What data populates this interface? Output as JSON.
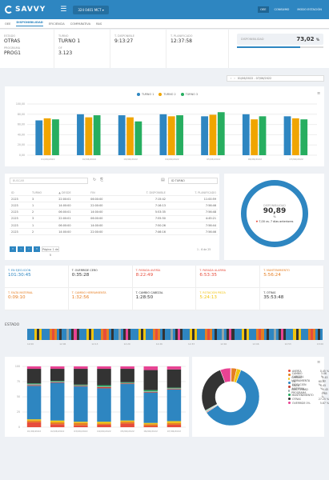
{
  "header": {
    "brand": "SAVVY",
    "machine": "324 0401 MCT ▾",
    "menu": [
      "OEE",
      "CONSUMO",
      "MODO ESTACIÓN"
    ]
  },
  "tabs": [
    "OEE",
    "DISPONIBILIDAD",
    "EFICIENCIA",
    "COMPARATIVA",
    "RAS"
  ],
  "kpis": [
    {
      "l1": "ESTADO",
      "v1": "OTRAS",
      "l2": "PROGRAMA",
      "v2": "PROG1"
    },
    {
      "l1": "TURNO",
      "v1": "TURNO 1",
      "l2": "OF",
      "v2": "3.123"
    },
    {
      "l1": "T. DISPONIBLE",
      "v1": "9:13:27",
      "l2": "",
      "v2": ""
    },
    {
      "l1": "T. PLANIFICADO",
      "v1": "12:37:58",
      "l2": "",
      "v2": ""
    }
  ],
  "disponibilidad": {
    "label": "DISPONIBILIDAD",
    "value": "73,02",
    "unit": "%",
    "fraction": 0.73
  },
  "date_range": "01/06/2022 - 07/06/2022",
  "chart_data": [
    {
      "type": "bar",
      "categories": [
        "01/06/2022",
        "02/06/2022",
        "03/06/2022",
        "04/06/2022",
        "05/06/2022",
        "06/06/2022",
        "07/06/2022"
      ],
      "series": [
        {
          "name": "TURNO 1",
          "color": "#2e86c1",
          "values": [
            68,
            80,
            78,
            80,
            76,
            80,
            76
          ]
        },
        {
          "name": "TURNO 2",
          "color": "#f0a500",
          "values": [
            72,
            74,
            74,
            76,
            79,
            70,
            72
          ]
        },
        {
          "name": "TURNO 3",
          "color": "#27ae60",
          "values": [
            70,
            78,
            66,
            78,
            84,
            76,
            70
          ]
        }
      ],
      "yticks": [
        "100,00",
        "80,00",
        "60,00",
        "40,00",
        "20,00",
        "0,00"
      ],
      "ylim": [
        0,
        100
      ]
    },
    {
      "type": "bar",
      "stacked": true,
      "categories": [
        "01/06/2022",
        "02/06/2022",
        "03/06/2022",
        "04/06/2022",
        "05/06/2022",
        "06/06/2022",
        "07/06/2022"
      ],
      "yticks": [
        "100",
        "75",
        "50",
        "25",
        "0"
      ],
      "ylim": [
        0,
        100
      ]
    },
    {
      "type": "pie",
      "labels": [
        "AVERÍA",
        "CAMBIO CABEZAL",
        "CAMBIO HERRAMIENTA",
        "EN EJECUCIÓN",
        "FALTA MATERIAL",
        "INACTIVIDAD PROGRAMA",
        "MANTENIMIENTO",
        "OTRAS",
        "OVERRIDE 0%"
      ],
      "values": [
        0.45,
        3.06,
        2.45,
        60.07,
        0.45,
        0.45,
        0.45,
        27.25,
        5.87
      ],
      "pct": [
        "0.45 %",
        "3.06 %",
        "2.45 %",
        "60.07 %",
        "0.45 %",
        "0.45 %",
        "0.45 %",
        "27.25 %",
        "5.87 %"
      ],
      "colors": [
        "#e74c3c",
        "#e67e22",
        "#f1c40f",
        "#2e86c1",
        "#c0392b",
        "#95a5a6",
        "#27ae60",
        "#333333",
        "#e84393"
      ]
    }
  ],
  "table": {
    "search": "BUSCAR",
    "select": "ID TURNO",
    "headers": [
      "ID",
      "TURNO",
      "▲ DESDE",
      "FIN",
      "T. DISPONIBLE",
      "T. PLANIFICADO"
    ],
    "rows": [
      [
        "2123",
        "3",
        "22:00:01",
        "06:00:00",
        "7:15:42",
        "11:00:59"
      ],
      [
        "2123",
        "1",
        "14:00:00",
        "22:00:00",
        "7:16:13",
        "7:56:46"
      ],
      [
        "2123",
        "2",
        "06:00:01",
        "14:00:00",
        "5:53:35",
        "7:56:48"
      ],
      [
        "2123",
        "3",
        "22:00:01",
        "06:00:00",
        "7:55:50",
        "4:45:21"
      ],
      [
        "2123",
        "1",
        "06:00:00",
        "14:00:00",
        "7:50:26",
        "7:56:44"
      ],
      [
        "2123",
        "2",
        "14:00:00",
        "22:00:00",
        "7:46:16",
        "7:56:46"
      ]
    ],
    "pager": "Página 1 de 5",
    "total": "1 - 6 de 25"
  },
  "ring": {
    "label": "DISPONIBILIDAD",
    "value": "90,89",
    "unit": "%",
    "compare": "7,00 vs. 7 días anteriores"
  },
  "tiles": [
    {
      "label": "T. EN EJECUCIÓN",
      "value": "101:30:45",
      "color": "#2e86c1"
    },
    {
      "label": "T. OVERRIDE CERO",
      "value": "0:35:28",
      "color": "#333"
    },
    {
      "label": "T. PARADA AVERÍA",
      "value": "8:22:49",
      "color": "#e74c3c"
    },
    {
      "label": "T. PARADA ALARMA",
      "value": "6:53:35",
      "color": "#e74c3c"
    },
    {
      "label": "T. MANTENIMIENTO",
      "value": "5:56:24",
      "color": "#e67e22"
    },
    {
      "label": "T. FALTA MATERIAL",
      "value": "0:09:10",
      "color": "#e67e22"
    },
    {
      "label": "T. CAMBIO HERRAMIENTA",
      "value": "1:32:56",
      "color": "#e67e22"
    },
    {
      "label": "T. CAMBIO CABEZAL",
      "value": "1:28:50",
      "color": "#333"
    },
    {
      "label": "T. ROTACIÓN PIEZA",
      "value": "5:24:13",
      "color": "#f1c40f"
    },
    {
      "label": "T. OTRAS",
      "value": "35:53:48",
      "color": "#333"
    }
  ],
  "estado": {
    "title": "ESTADO",
    "ticks": [
      "12:00",
      "12:06",
      "12:13",
      "12:20",
      "12:26",
      "12:33",
      "12:40",
      "12:46",
      "12:53",
      "13:00"
    ]
  }
}
